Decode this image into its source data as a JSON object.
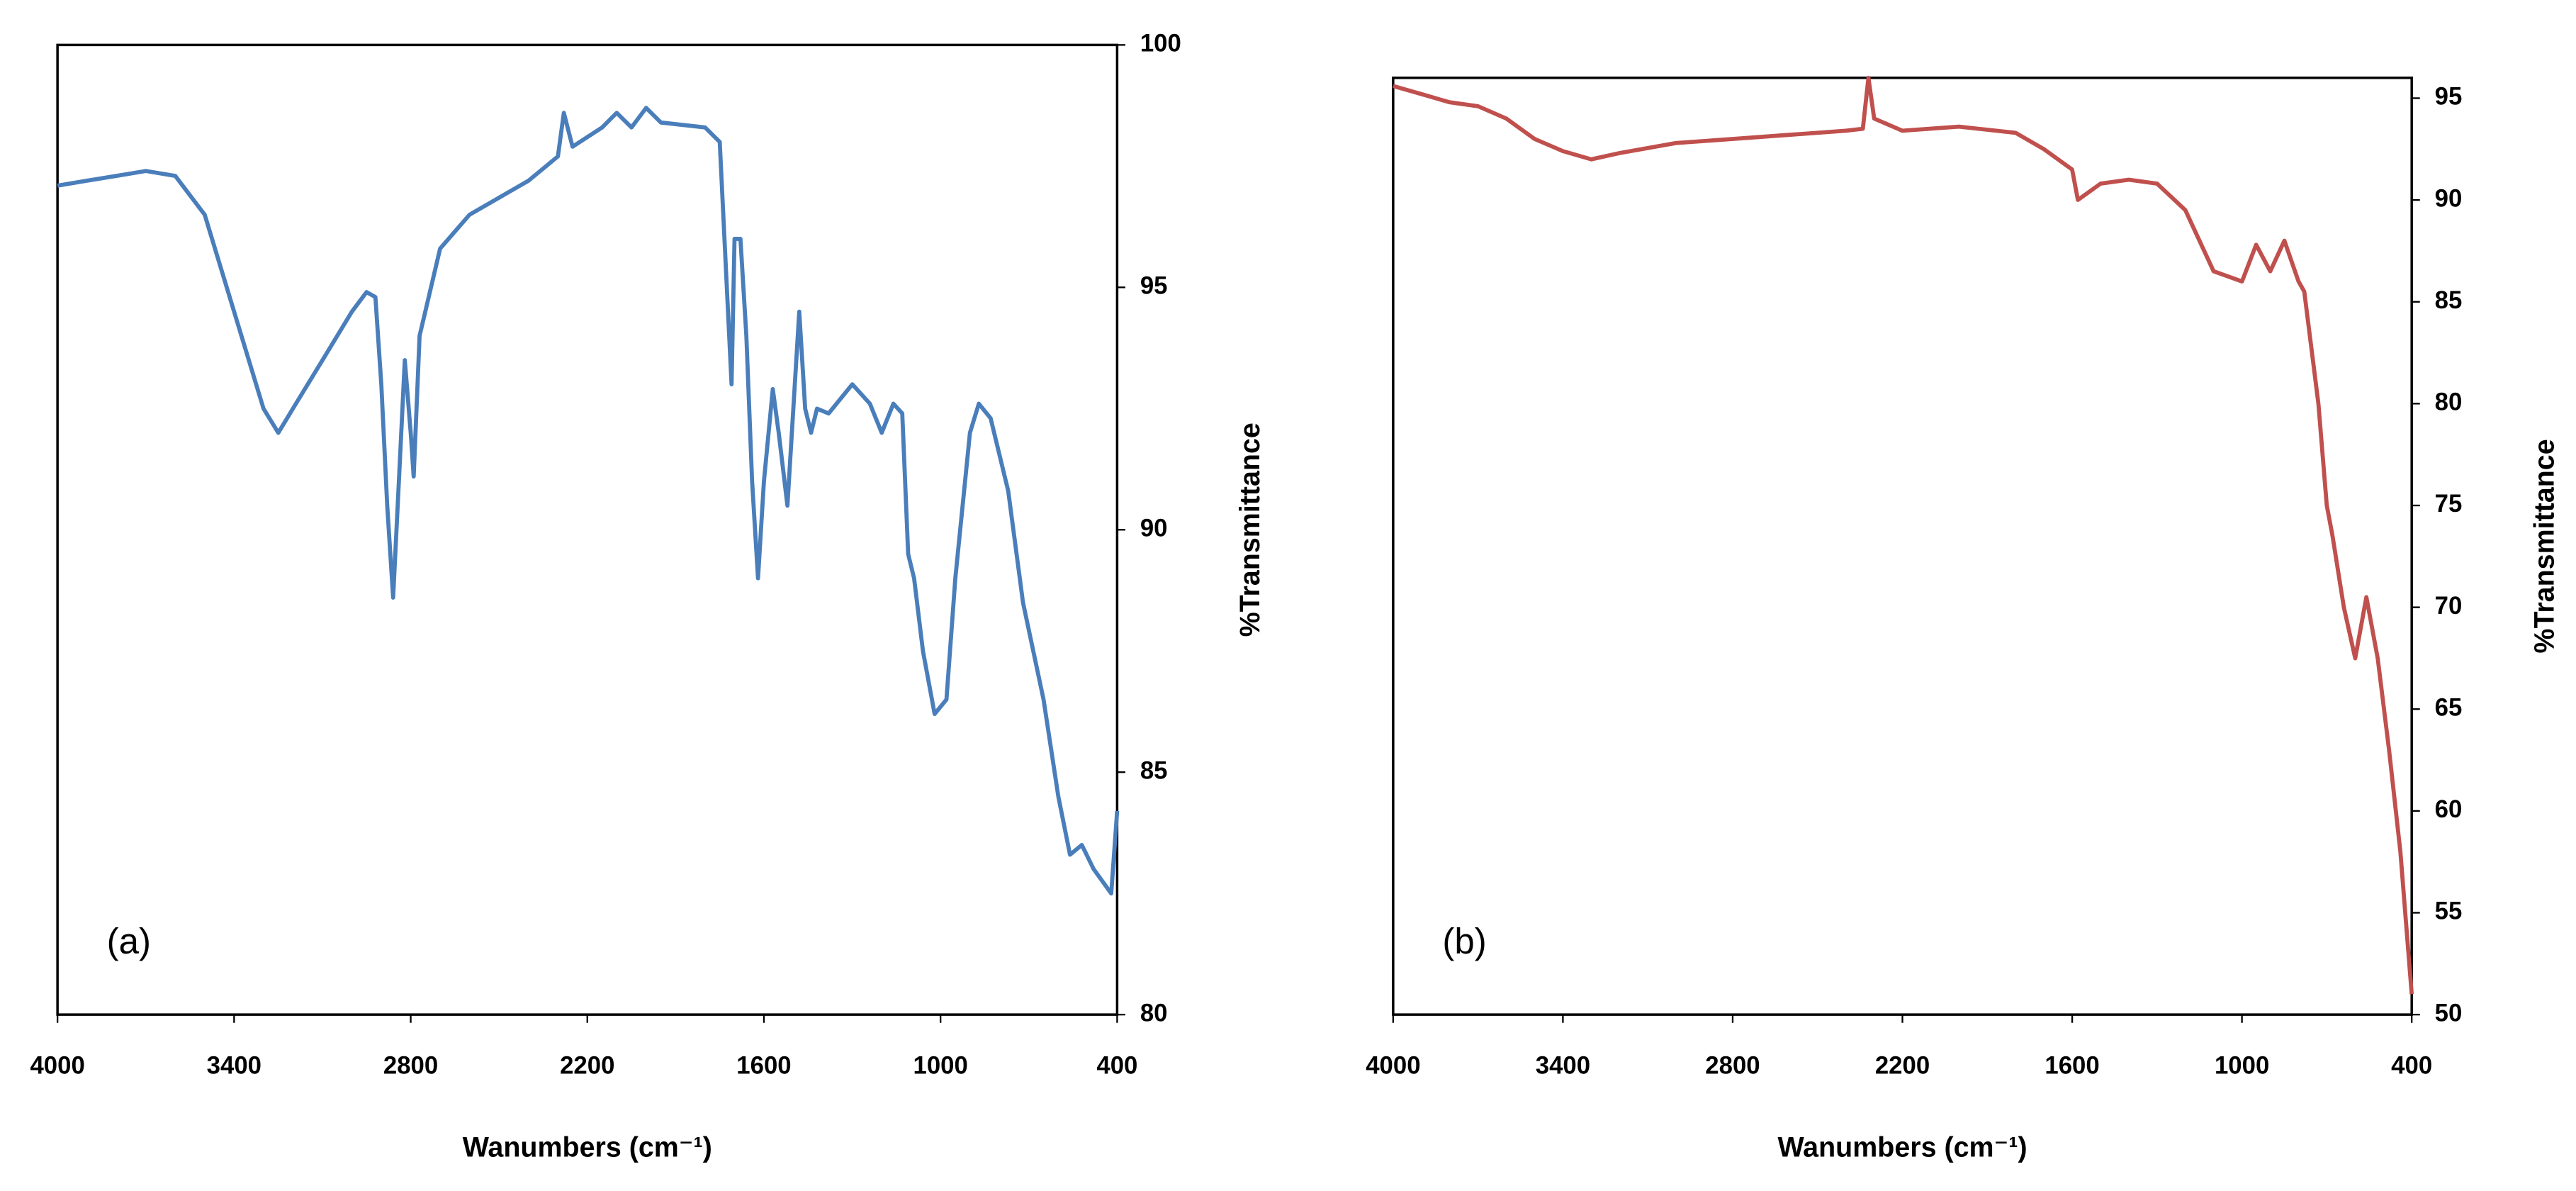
{
  "chart_data": [
    {
      "type": "line",
      "annotation": "(a)",
      "xlabel": "Wanumbers (cm⁻¹)",
      "ylabel": "%Transmittance",
      "xlim": [
        4000,
        400
      ],
      "xticks": [
        4000,
        3400,
        2800,
        2200,
        1600,
        1000,
        400
      ],
      "ylim": [
        80,
        100
      ],
      "yticks": [
        80,
        85,
        90,
        95,
        100
      ],
      "series": [
        {
          "color": "#4a7ebb",
          "x": [
            4000,
            3900,
            3800,
            3700,
            3600,
            3500,
            3400,
            3300,
            3250,
            3200,
            3100,
            3000,
            2950,
            2920,
            2900,
            2880,
            2860,
            2840,
            2820,
            2800,
            2790,
            2770,
            2700,
            2600,
            2400,
            2300,
            2280,
            2250,
            2150,
            2100,
            2050,
            2000,
            1950,
            1800,
            1750,
            1730,
            1710,
            1700,
            1680,
            1660,
            1640,
            1620,
            1600,
            1570,
            1550,
            1520,
            1500,
            1480,
            1460,
            1440,
            1420,
            1380,
            1300,
            1240,
            1200,
            1160,
            1130,
            1110,
            1090,
            1060,
            1020,
            980,
            950,
            900,
            870,
            830,
            770,
            720,
            650,
            600,
            560,
            520,
            480,
            420,
            400
          ],
          "values": [
            97.1,
            97.2,
            97.3,
            97.4,
            97.3,
            96.5,
            94.5,
            92.5,
            92.0,
            92.5,
            93.5,
            94.5,
            94.9,
            94.8,
            93.0,
            90.5,
            88.6,
            91.0,
            93.5,
            92.0,
            91.1,
            94.0,
            95.8,
            96.5,
            97.2,
            97.7,
            98.6,
            97.9,
            98.3,
            98.6,
            98.3,
            98.7,
            98.4,
            98.3,
            98.0,
            95.5,
            93.0,
            96.0,
            96.0,
            94.0,
            91.0,
            89.0,
            91.0,
            92.9,
            92.0,
            90.5,
            92.5,
            94.5,
            92.5,
            92.0,
            92.5,
            92.4,
            93.0,
            92.6,
            92.0,
            92.6,
            92.4,
            89.5,
            89.0,
            87.5,
            86.2,
            86.5,
            89.0,
            92.0,
            92.6,
            92.3,
            90.8,
            88.5,
            86.5,
            84.5,
            83.3,
            83.5,
            83.0,
            82.5,
            84.2
          ]
        }
      ]
    },
    {
      "type": "line",
      "annotation": "(b)",
      "xlabel": "Wanumbers (cm⁻¹)",
      "ylabel": "%Transmittance",
      "xlim": [
        4000,
        400
      ],
      "xticks": [
        4000,
        3400,
        2800,
        2200,
        1600,
        1000,
        400
      ],
      "ylim": [
        50,
        96
      ],
      "yticks": [
        50,
        55,
        60,
        65,
        70,
        75,
        80,
        85,
        90,
        95
      ],
      "series": [
        {
          "color": "#c0504d",
          "x": [
            4000,
            3900,
            3800,
            3700,
            3600,
            3500,
            3400,
            3300,
            3200,
            3000,
            2800,
            2600,
            2400,
            2340,
            2320,
            2300,
            2200,
            2000,
            1800,
            1700,
            1600,
            1580,
            1500,
            1400,
            1300,
            1200,
            1100,
            1000,
            950,
            900,
            850,
            800,
            780,
            730,
            700,
            680,
            640,
            600,
            560,
            520,
            480,
            440,
            400
          ],
          "values": [
            95.6,
            95.2,
            94.8,
            94.6,
            94.0,
            93.0,
            92.4,
            92.0,
            92.3,
            92.8,
            93.0,
            93.2,
            93.4,
            93.5,
            96.0,
            94.0,
            93.4,
            93.6,
            93.3,
            92.5,
            91.5,
            90.0,
            90.8,
            91.0,
            90.8,
            89.5,
            86.5,
            86.0,
            87.8,
            86.5,
            88.0,
            86.0,
            85.5,
            80.0,
            75.0,
            73.5,
            70.0,
            67.5,
            70.5,
            67.5,
            63.0,
            58.0,
            51.0
          ]
        }
      ]
    }
  ]
}
